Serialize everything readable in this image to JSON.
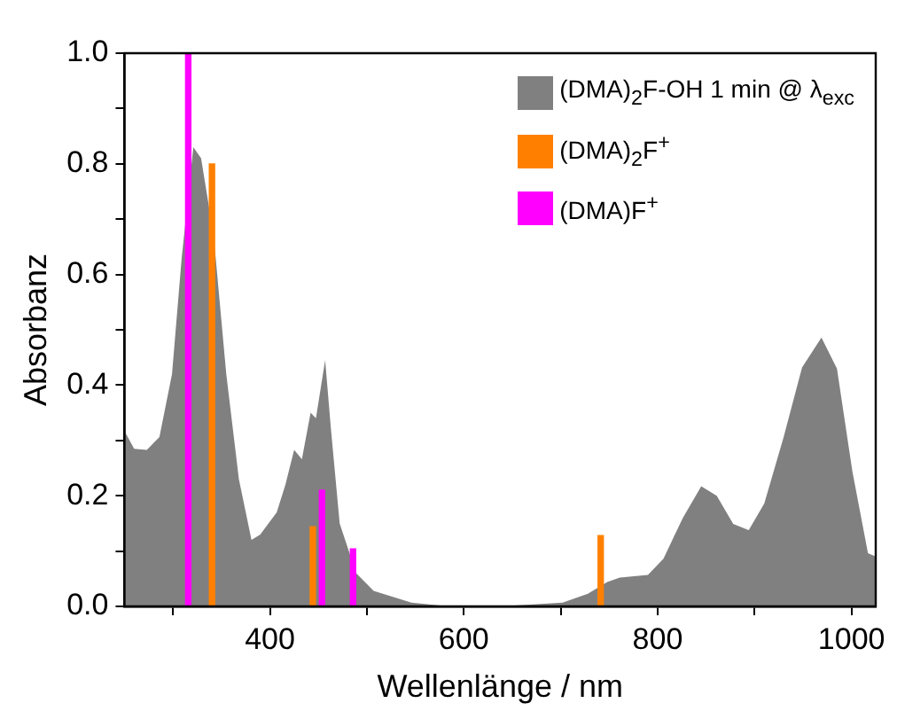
{
  "chart_data": {
    "type": "area",
    "xlabel": "Wellenlänge / nm",
    "ylabel": "Absorbanz",
    "xlim": [
      250,
      1025
    ],
    "ylim": [
      0,
      1.0
    ],
    "xticks": [
      {
        "value": 300,
        "label": null
      },
      400,
      {
        "value": 500,
        "label": null
      },
      600,
      {
        "value": 700,
        "label": null
      },
      800,
      {
        "value": 900,
        "label": null
      },
      1000
    ],
    "yticks": [
      {
        "value": 0,
        "label": "0.0"
      },
      {
        "value": 0.1,
        "label": null
      },
      {
        "value": 0.2,
        "label": "0.2"
      },
      {
        "value": 0.3,
        "label": null
      },
      {
        "value": 0.4,
        "label": "0.4"
      },
      {
        "value": 0.5,
        "label": null
      },
      {
        "value": 0.6,
        "label": "0.6"
      },
      {
        "value": 0.7,
        "label": null
      },
      {
        "value": 0.8,
        "label": "0.8"
      },
      {
        "value": 0.9,
        "label": null
      },
      {
        "value": 1.0,
        "label": "1.0"
      }
    ],
    "grid": false,
    "legend": "top right",
    "series": [
      {
        "name": "(DMA)$_{2}$F-OH 1 min @ λ$_{exc}$",
        "color": "#808080",
        "x": [
          250,
          260,
          273,
          286,
          299,
          309,
          321,
          329,
          342,
          355,
          368,
          381,
          390,
          407,
          416,
          425,
          433,
          442,
          447.5,
          457,
          463,
          472,
          489,
          507,
          546,
          585,
          637,
          702,
          728,
          748,
          761,
          790,
          806,
          826,
          845,
          861,
          878,
          894,
          910,
          930,
          949,
          969,
          985,
          1001,
          1017,
          1025
        ],
        "values": [
          0.317,
          0.285,
          0.283,
          0.306,
          0.42,
          0.63,
          0.83,
          0.81,
          0.67,
          0.42,
          0.23,
          0.12,
          0.13,
          0.17,
          0.22,
          0.283,
          0.266,
          0.35,
          0.34,
          0.445,
          0.32,
          0.15,
          0.06,
          0.028,
          0.007,
          0,
          0,
          0.007,
          0.023,
          0.044,
          0.052,
          0.057,
          0.086,
          0.16,
          0.217,
          0.2,
          0.149,
          0.138,
          0.186,
          0.306,
          0.432,
          0.486,
          0.43,
          0.243,
          0.096,
          0.09
        ]
      },
      {
        "name": "(DMA)$_{2}$F$^{+}$",
        "type": "bar",
        "color": "#ff8000",
        "x": [
          343,
          447,
          744
        ],
        "values": [
          0.8,
          0.144,
          0.128
        ]
      },
      {
        "name": "(DMA)F$^{+}$",
        "type": "bar",
        "color": "#ff00ff",
        "x": [
          313,
          451,
          483
        ],
        "values": [
          1.0,
          0.21,
          0.104
        ]
      }
    ]
  }
}
